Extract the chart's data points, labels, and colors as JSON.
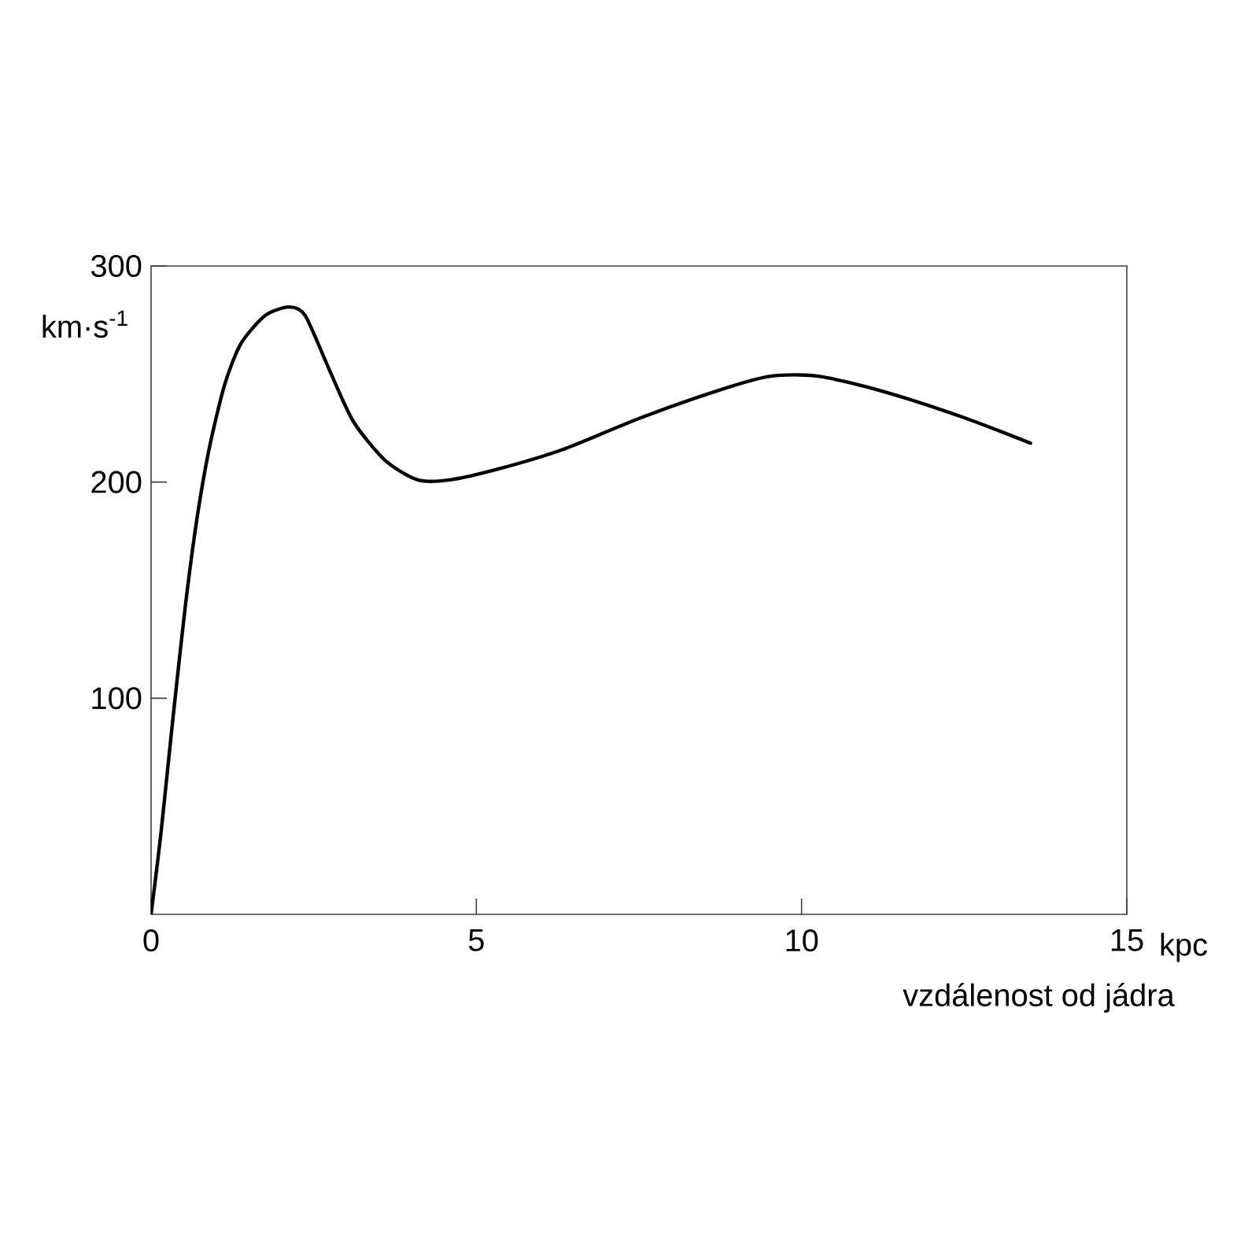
{
  "chart_data": {
    "type": "line",
    "xlabel": "vzdálenost od jádra",
    "ylabel": "km·s$^{-1}$",
    "annotations": [
      "kpc"
    ],
    "x": [
      0,
      0.15,
      0.33,
      0.52,
      0.7,
      0.89,
      1.13,
      1.38,
      1.75,
      2.12,
      2.37,
      2.74,
      3.11,
      3.6,
      4.1,
      4.59,
      5.33,
      6.32,
      7.55,
      8.78,
      9.52,
      10.26,
      11.25,
      12.48,
      13.52
    ],
    "series": [
      {
        "color": "#000000",
        "values": [
          0,
          37,
          89,
          141,
          182,
          215,
          245,
          264,
          277,
          281,
          277,
          252,
          228,
          210,
          201,
          201,
          206,
          215,
          230,
          243,
          249,
          249,
          242,
          230,
          218
        ]
      }
    ],
    "xlim": [
      0,
      15
    ],
    "xticks": [
      0,
      5,
      10,
      15
    ],
    "ylim": [
      0,
      300
    ],
    "yticks": [
      100,
      200,
      300
    ],
    "grid": false,
    "marker": "none",
    "line_style": "solid"
  }
}
